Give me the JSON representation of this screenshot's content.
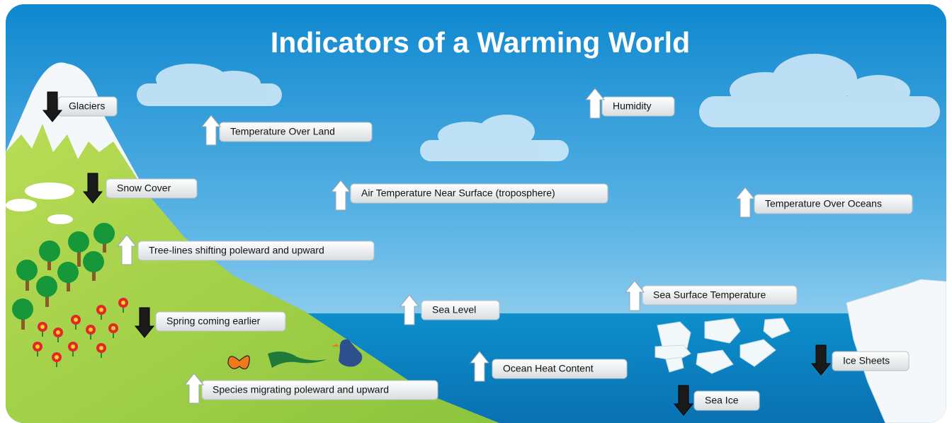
{
  "title": "Indicators of a Warming World",
  "indicators": [
    {
      "label": "Glaciers",
      "direction": "down"
    },
    {
      "label": "Temperature Over Land",
      "direction": "up"
    },
    {
      "label": "Humidity",
      "direction": "up"
    },
    {
      "label": "Snow Cover",
      "direction": "down"
    },
    {
      "label": "Air Temperature Near Surface (troposphere)",
      "direction": "up"
    },
    {
      "label": "Temperature Over Oceans",
      "direction": "up"
    },
    {
      "label": "Tree-lines shifting poleward and upward",
      "direction": "up"
    },
    {
      "label": "Sea Surface Temperature",
      "direction": "up"
    },
    {
      "label": "Spring coming earlier",
      "direction": "down"
    },
    {
      "label": "Sea Level",
      "direction": "up"
    },
    {
      "label": "Ocean Heat Content",
      "direction": "up"
    },
    {
      "label": "Ice Sheets",
      "direction": "down"
    },
    {
      "label": "Species migrating poleward and upward",
      "direction": "up"
    },
    {
      "label": "Sea Ice",
      "direction": "down"
    }
  ]
}
